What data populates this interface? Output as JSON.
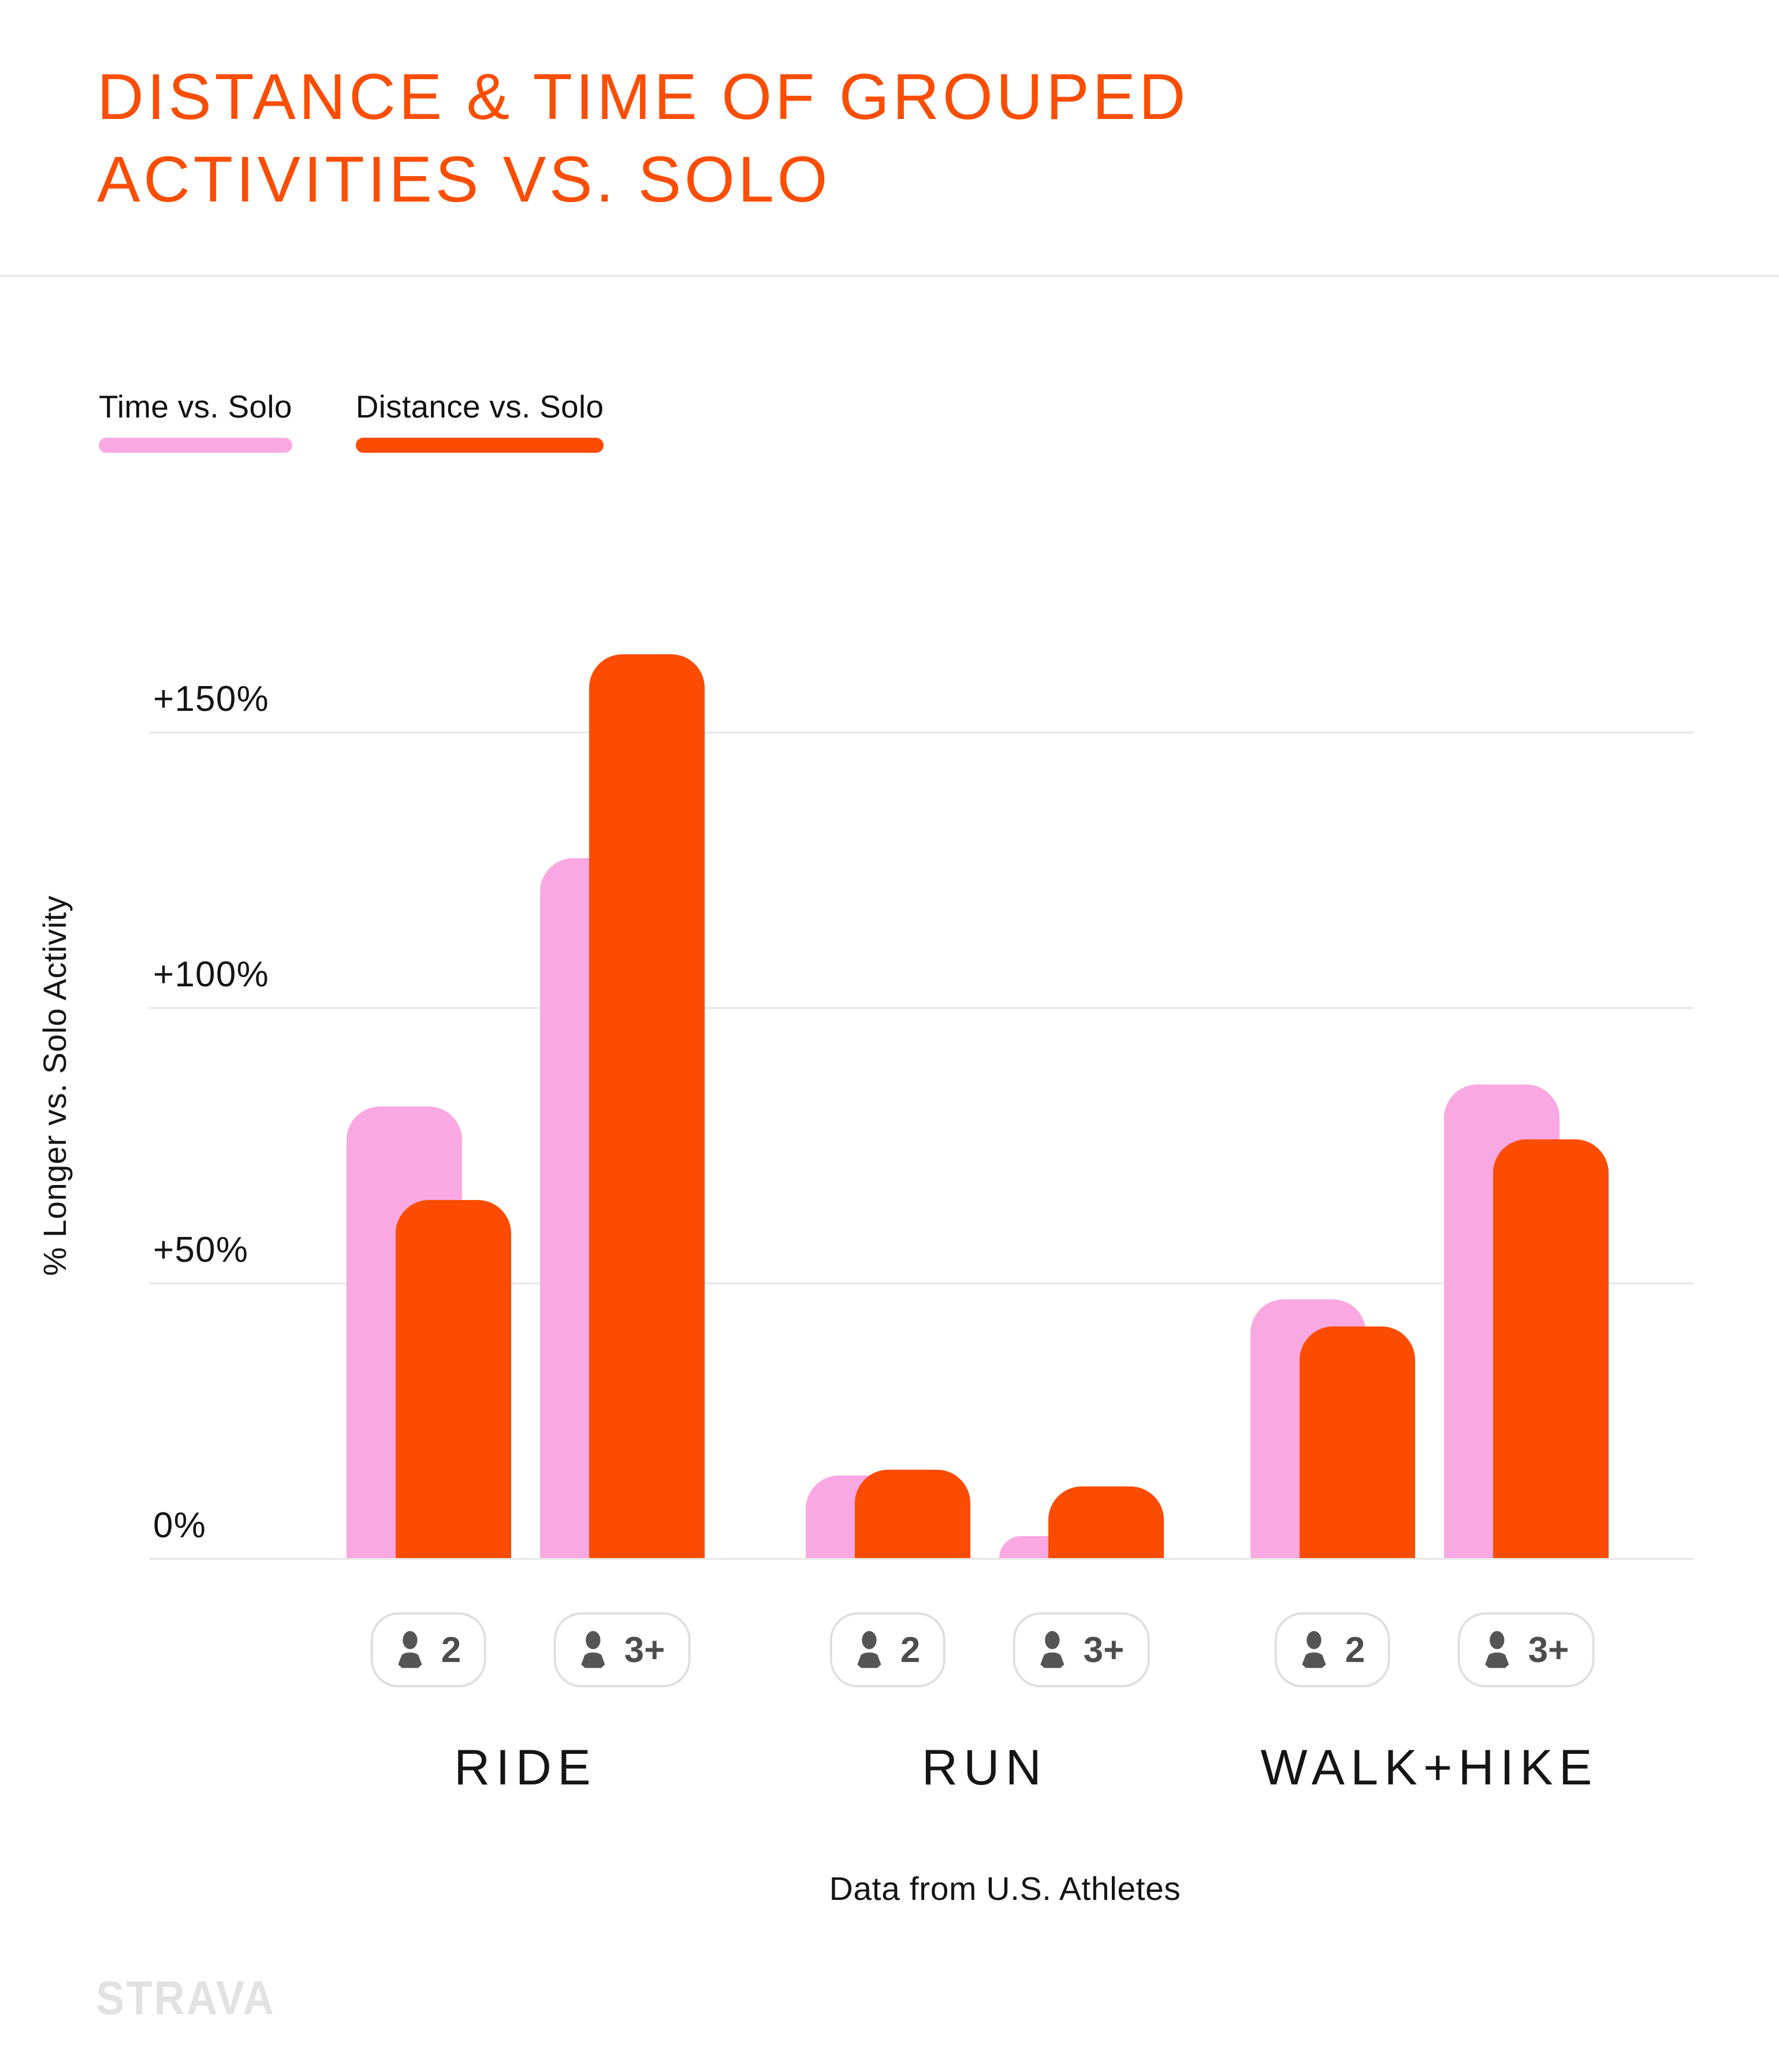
{
  "title": "DISTANCE & TIME OF GROUPED ACTIVITIES VS. SOLO",
  "legend": {
    "items": [
      {
        "label": "Time vs. Solo",
        "color": "#F9A8E1"
      },
      {
        "label": "Distance vs. Solo",
        "color": "#FC4C02"
      }
    ]
  },
  "chart_data": {
    "type": "bar",
    "title": "DISTANCE & TIME OF GROUPED ACTIVITIES VS. SOLO",
    "ylabel": "% Longer vs. Solo Activity",
    "ylim": [
      0,
      170
    ],
    "grid": true,
    "legend_position": "top-left",
    "yticks": [
      {
        "label": "+150%",
        "value": 150
      },
      {
        "label": "+100%",
        "value": 100
      },
      {
        "label": "+50%",
        "value": 50
      },
      {
        "label": "0%",
        "value": 0
      }
    ],
    "series": [
      {
        "name": "Time vs. Solo",
        "color": "#F9A8E1"
      },
      {
        "name": "Distance vs. Solo",
        "color": "#FC4C02"
      }
    ],
    "groups": [
      {
        "label": "RIDE",
        "subgroups": [
          {
            "badge": "2",
            "time_pct": 82,
            "distance_pct": 65
          },
          {
            "badge": "3+",
            "time_pct": 127,
            "distance_pct": 164
          }
        ]
      },
      {
        "label": "RUN",
        "subgroups": [
          {
            "badge": "2",
            "time_pct": 15,
            "distance_pct": 16
          },
          {
            "badge": "3+",
            "time_pct": 4,
            "distance_pct": 13
          }
        ]
      },
      {
        "label": "WALK+HIKE",
        "subgroups": [
          {
            "badge": "2",
            "time_pct": 47,
            "distance_pct": 42
          },
          {
            "badge": "3+",
            "time_pct": 86,
            "distance_pct": 76
          }
        ]
      }
    ],
    "caption": "Data from U.S. Athletes"
  },
  "footer": {
    "caption": "Data from U.S. Athletes",
    "brand": "STRAVA"
  },
  "colors": {
    "accent_orange": "#FC4C02",
    "accent_pink": "#F9A8E1",
    "title_orange": "#FB4E04",
    "grid": "#E7E7E7",
    "text": "#141414",
    "badge_text": "#4D4D4D",
    "badge_border": "#DFDFDF",
    "brand_gray": "#E2E2E2",
    "background": "#FFFFFF"
  }
}
